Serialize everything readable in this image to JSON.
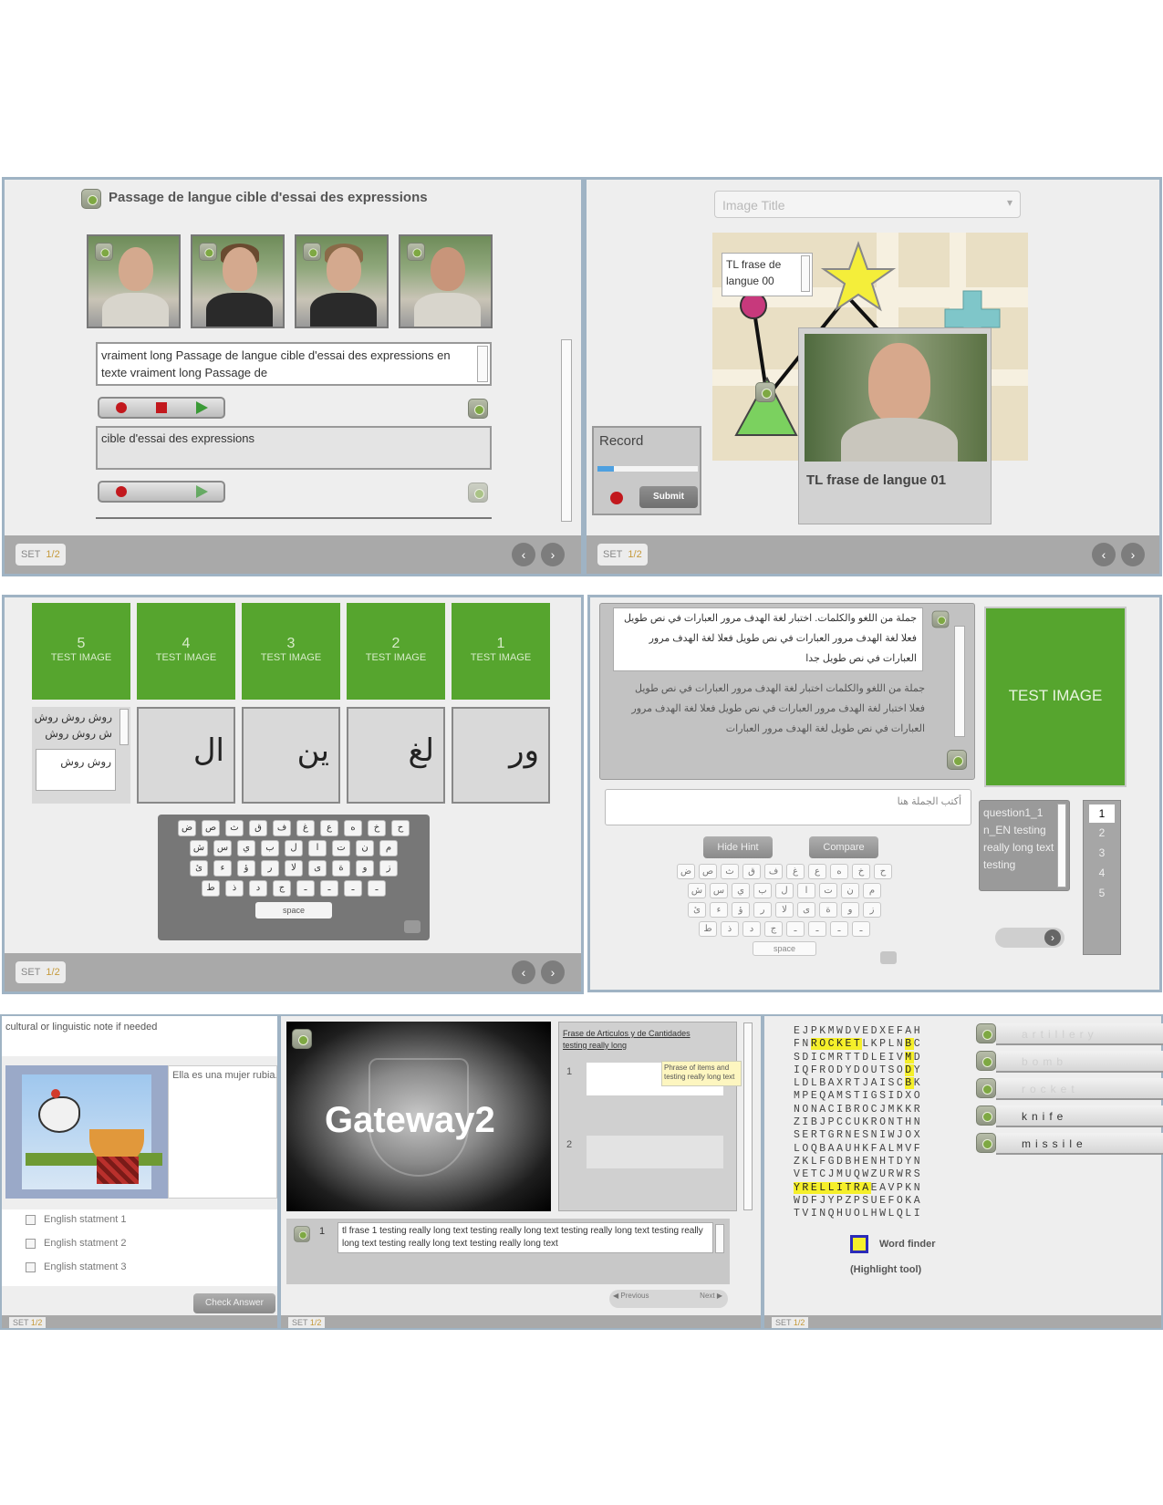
{
  "common": {
    "set_label": "SET",
    "page": "1/2"
  },
  "p1": {
    "title": "Passage de langue cible d'essai des expressions",
    "text1": "vraiment long Passage de langue cible d'essai des expressions en texte vraiment long Passage de",
    "text2": "cible d'essai des expressions"
  },
  "p2": {
    "select_placeholder": "Image Title",
    "popup_text": "TL frase de langue 00",
    "photo_caption": "TL frase de langue 01",
    "record_label": "Record",
    "submit_label": "Submit"
  },
  "p3": {
    "tiles": [
      {
        "num": "5",
        "label": "TEST IMAGE"
      },
      {
        "num": "4",
        "label": "TEST IMAGE"
      },
      {
        "num": "3",
        "label": "TEST IMAGE"
      },
      {
        "num": "2",
        "label": "TEST IMAGE"
      },
      {
        "num": "1",
        "label": "TEST IMAGE"
      }
    ],
    "side_text_1": "روش روش روش",
    "side_text_2": "ش روش روش",
    "side_answer": "روش روش",
    "arabic_tiles": [
      "ال",
      "ين",
      "لغ",
      "ور"
    ],
    "keyboard_rows": [
      [
        "ض",
        "ص",
        "ث",
        "ق",
        "ف",
        "غ",
        "ع",
        "ه",
        "خ",
        "ح"
      ],
      [
        "ش",
        "س",
        "ي",
        "ب",
        "ل",
        "ا",
        "ت",
        "ن",
        "م",
        "ك"
      ],
      [
        "ئ",
        "ء",
        "ؤ",
        "ر",
        "لا",
        "ى",
        "ة",
        "و",
        "ز",
        "ظ"
      ],
      [
        "ط",
        "ذ",
        "د",
        "ج",
        "ـ",
        "ـ",
        "ـ",
        "ـ"
      ]
    ],
    "space_label": "space"
  },
  "p4": {
    "arabic_text_1": "جملة من اللغو والكلمات. اختبار لغة الهدف مرور العبارات في نص طويل فعلا لغة الهدف مرور العبارات في نص طويل فعلا لغة الهدف مرور العبارات في نص طويل جدا",
    "arabic_text_2": "جملة من اللغو والكلمات اختبار لغة الهدف مرور العبارات في نص طويل فعلا اختبار لغة الهدف مرور العبارات في نص طويل فعلا لغة الهدف مرور العبارات في نص طويل لغة الهدف مرور العبارات",
    "answer_text": "أكتب الجملة هنا",
    "hide_hint_label": "Hide Hint",
    "compare_label": "Compare",
    "test_image_label": "TEST IMAGE",
    "question_text": "question1_1 n_EN testing really long text testing",
    "page_numbers": [
      "1",
      "2",
      "3",
      "4",
      "5"
    ],
    "space_label": "space"
  },
  "p5": {
    "note": "cultural or linguistic note if needed",
    "sentence": "Ella es una mujer rubia.",
    "statements": [
      "English statment 1",
      "English statment 2",
      "English statment 3"
    ],
    "check_label": "Check Answer"
  },
  "p6": {
    "video_title": "Gateway2",
    "link_text": "Frase de Articulos y de Cantidades testing really long",
    "tooltip": "Phrase of items and testing really long text",
    "row_labels": [
      "1",
      "2"
    ],
    "bottom_num": "1",
    "bottom_text": "tl frase 1 testing really long text testing really long text testing really long text testing really long text testing really long text testing really long text",
    "prev_label": "Previous",
    "next_label": "Next"
  },
  "p7": {
    "grid": [
      "EJPKMWDVEDXEFAH",
      "FNROCKETLKPLNBC",
      "SDICMRTTDLEIVMD",
      "IQFRODYDOUTSODY",
      "LDLBAXRTJAISCBK",
      "MPEQAMSTIGSIDXO",
      "NONACIBROCJMKKR",
      "ZIBJPCCUKRONTHN",
      "SERTGRNESNIWJOX",
      "LOQBAAUHKFALMVF",
      "ZKLFGDBHENHTDYN",
      "VETCJMUQWZURWRS",
      "YRELLITRAEAVPKN",
      "WDFJYPZPSUEFOKA",
      "TVINQHUOLHWLQLI"
    ],
    "words": [
      {
        "text": "artillery",
        "found": false
      },
      {
        "text": "bomb",
        "found": false
      },
      {
        "text": "rocket",
        "found": false
      },
      {
        "text": "knife",
        "found": true
      },
      {
        "text": "missile",
        "found": true
      }
    ],
    "legend_1": "Word finder",
    "legend_2": "(Highlight tool)",
    "highlight_color": "#f5ef2a"
  },
  "colors": {
    "tile_green": "#56a52e",
    "record_red": "#c2181d",
    "play_green": "#3a9a36"
  }
}
